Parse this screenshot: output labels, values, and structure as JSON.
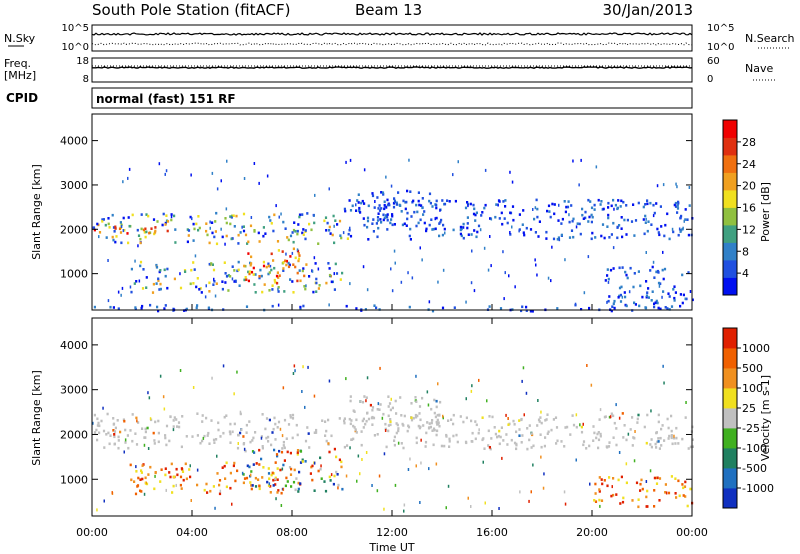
{
  "header": {
    "title": "South Pole Station (fitACF)",
    "beam": "Beam 13",
    "date": "30/Jan/2013"
  },
  "top_strips": {
    "nsky": {
      "label": "N.Sky",
      "tick_top": "10^5",
      "tick_bottom": "10^0"
    },
    "nsearch": {
      "label": "N.Search",
      "tick_top": "10^5",
      "tick_bottom": "10^0"
    },
    "freq": {
      "label_line1": "Freq.",
      "label_line2": "[MHz]",
      "tick_top": "18",
      "tick_bottom": "8"
    },
    "nave": {
      "label": "Nave",
      "tick_top": "60",
      "tick_bottom": "0"
    },
    "cpid": {
      "label": "CPID",
      "value": "normal (fast) 151 RF"
    }
  },
  "chart_data": [
    {
      "type": "heatmap",
      "name": "power-panel",
      "ylabel": "Slant Range [km]",
      "y_ticks": [
        "1000",
        "2000",
        "3000",
        "4000"
      ],
      "ylim": [
        180,
        4600
      ],
      "xlim": [
        0,
        24
      ],
      "colorbar": {
        "label": "Power [dB]",
        "ticks": [
          "4",
          "8",
          "12",
          "16",
          "20",
          "24",
          "28"
        ],
        "range": [
          0,
          32
        ],
        "colors": [
          "#0010f0",
          "#2050e0",
          "#3080c8",
          "#40a080",
          "#90c040",
          "#f0e020",
          "#f0a020",
          "#f07010",
          "#e03010",
          "#f00000"
        ]
      },
      "regions": [
        {
          "t0": 0.0,
          "t1": 10.2,
          "r0": 1700,
          "r1": 2400,
          "level": "mid"
        },
        {
          "t0": 0.0,
          "t1": 3.0,
          "r0": 1850,
          "r1": 2100,
          "level": "high"
        },
        {
          "t0": 1.5,
          "t1": 10.0,
          "r0": 600,
          "r1": 1300,
          "level": "mid"
        },
        {
          "t0": 6.0,
          "t1": 8.5,
          "r0": 800,
          "r1": 1600,
          "level": "high"
        },
        {
          "t0": 10.2,
          "t1": 24.0,
          "r0": 1800,
          "r1": 2700,
          "level": "low"
        },
        {
          "t0": 10.0,
          "t1": 14.0,
          "r0": 2100,
          "r1": 2900,
          "level": "low"
        },
        {
          "t0": 20.5,
          "t1": 24.0,
          "r0": 250,
          "r1": 1200,
          "level": "low"
        },
        {
          "t0": 0.0,
          "t1": 24.0,
          "r0": 180,
          "r1": 320,
          "level": "low"
        }
      ]
    },
    {
      "type": "heatmap",
      "name": "velocity-panel",
      "xlabel": "Time UT",
      "ylabel": "Slant Range [km]",
      "x_ticks": [
        "00:00",
        "04:00",
        "08:00",
        "12:00",
        "16:00",
        "20:00",
        "00:00"
      ],
      "y_ticks": [
        "1000",
        "2000",
        "3000",
        "4000"
      ],
      "ylim": [
        180,
        4600
      ],
      "xlim": [
        0,
        24
      ],
      "colorbar": {
        "label": "Velocity [m s-1]",
        "ticks": [
          "1000",
          "500",
          "100",
          "25",
          "-25",
          "-100",
          "-500",
          "-1000"
        ],
        "colors": [
          "#1030c0",
          "#2070c0",
          "#208060",
          "#40b020",
          "#c0c0c0",
          "#f0e020",
          "#f09020",
          "#f06000",
          "#e02000"
        ]
      },
      "regions": [
        {
          "t0": 0.0,
          "t1": 24.0,
          "r0": 1700,
          "r1": 2500,
          "level": "ground"
        },
        {
          "t0": 1.5,
          "t1": 7.5,
          "r0": 700,
          "r1": 1400,
          "level": "away"
        },
        {
          "t0": 6.0,
          "t1": 10.0,
          "r0": 700,
          "r1": 1700,
          "level": "toward"
        },
        {
          "t0": 20.0,
          "t1": 24.0,
          "r0": 400,
          "r1": 1100,
          "level": "away"
        },
        {
          "t0": 10.2,
          "t1": 14.0,
          "r0": 2100,
          "r1": 2900,
          "level": "ground"
        }
      ]
    }
  ]
}
